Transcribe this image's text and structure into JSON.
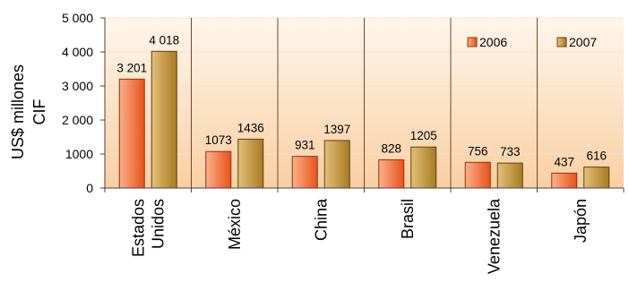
{
  "chart_data": {
    "type": "bar",
    "ylabel": [
      "US$ millones",
      "CIF"
    ],
    "ylim": [
      0,
      5000
    ],
    "yticks": [
      0,
      1000,
      2000,
      3000,
      4000,
      5000
    ],
    "ytick_labels": [
      "0",
      "1000",
      "2 000",
      "3 000",
      "4 000",
      "5 000"
    ],
    "grid": true,
    "legend_position": "top-right",
    "categories": [
      [
        "Estados",
        "Unidos"
      ],
      [
        "México"
      ],
      [
        "China"
      ],
      [
        "Brasil"
      ],
      [
        "Venezuela"
      ],
      [
        "Japón"
      ]
    ],
    "series": [
      {
        "name": "2006",
        "values": [
          3201,
          1073,
          931,
          828,
          756,
          437
        ],
        "labels": [
          "3 201",
          "1073",
          "931",
          "828",
          "756",
          "437"
        ]
      },
      {
        "name": "2007",
        "values": [
          4018,
          1436,
          1397,
          1205,
          733,
          616
        ],
        "labels": [
          "4 018",
          "1436",
          "1397",
          "1205",
          "733",
          "616"
        ]
      }
    ],
    "colors": {
      "s2006_light": "#fbb08a",
      "s2006_dark": "#e8521a",
      "s2007_light": "#e3c07a",
      "s2007_dark": "#a87a22",
      "plot_light": "#fff6ec",
      "plot_dark": "#f9cfa3"
    }
  }
}
